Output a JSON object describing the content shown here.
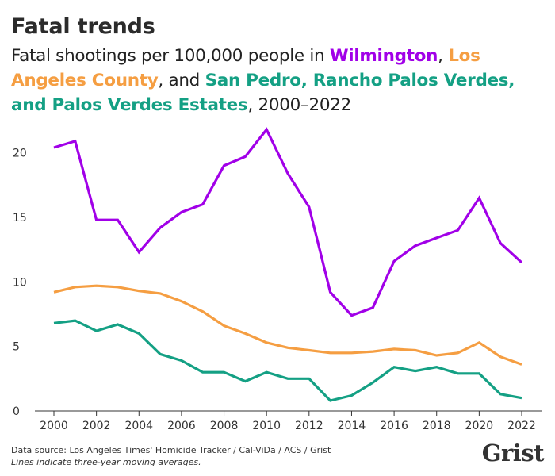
{
  "header": {
    "title": "Fatal trends",
    "subtitle": {
      "lead": "Fatal shootings per 100,000 people in ",
      "wilmington": "Wilmington",
      "sep1": ", ",
      "la": "Los Angeles County",
      "sep2": ", and ",
      "sp": "San Pedro, Rancho Palos Verdes, and Palos Verdes Estates",
      "tail": ", 2000–2022"
    }
  },
  "colors": {
    "wilmington": "#a100e8",
    "la": "#f59e42",
    "sp": "#14a084",
    "text": "#222222",
    "grid": "#dddddd"
  },
  "chart_data": {
    "type": "line",
    "title": "Fatal trends",
    "subtitle": "Fatal shootings per 100,000 people in Wilmington, Los Angeles County, and San Pedro, Rancho Palos Verdes, and Palos Verdes Estates, 2000–2022",
    "xlabel": "",
    "ylabel": "",
    "xlim": [
      2000,
      2022
    ],
    "ylim": [
      0,
      22
    ],
    "xticks": [
      2000,
      2002,
      2004,
      2006,
      2008,
      2010,
      2012,
      2014,
      2016,
      2018,
      2020,
      2022
    ],
    "yticks": [
      0,
      5,
      10,
      15,
      20
    ],
    "grid": false,
    "x": [
      2000,
      2001,
      2002,
      2003,
      2004,
      2005,
      2006,
      2007,
      2008,
      2009,
      2010,
      2011,
      2012,
      2013,
      2014,
      2015,
      2016,
      2017,
      2018,
      2019,
      2020,
      2021,
      2022
    ],
    "series": [
      {
        "name": "Wilmington",
        "color": "#a100e8",
        "values": [
          20.4,
          20.9,
          14.8,
          14.8,
          12.3,
          14.2,
          15.4,
          16.0,
          19.0,
          19.7,
          21.8,
          18.4,
          15.8,
          9.2,
          7.4,
          8.0,
          11.6,
          12.8,
          13.4,
          14.0,
          16.5,
          13.0,
          11.5
        ]
      },
      {
        "name": "Los Angeles County",
        "color": "#f59e42",
        "values": [
          9.2,
          9.6,
          9.7,
          9.6,
          9.3,
          9.1,
          8.5,
          7.7,
          6.6,
          6.0,
          5.3,
          4.9,
          4.7,
          4.5,
          4.5,
          4.6,
          4.8,
          4.7,
          4.3,
          4.5,
          5.3,
          4.2,
          3.6
        ]
      },
      {
        "name": "San Pedro, Rancho Palos Verdes, and Palos Verdes Estates",
        "color": "#14a084",
        "values": [
          6.8,
          7.0,
          6.2,
          6.7,
          6.0,
          4.4,
          3.9,
          3.0,
          3.0,
          2.3,
          3.0,
          2.5,
          2.5,
          0.8,
          1.2,
          2.2,
          3.4,
          3.1,
          3.4,
          2.9,
          2.9,
          1.3,
          1.0
        ]
      }
    ]
  },
  "footer": {
    "source": "Data source: Los Angeles Times' Homicide Tracker / Cal-ViDa / ACS / Grist",
    "note": "Lines indicate three-year moving averages.",
    "logo": "Grist"
  }
}
